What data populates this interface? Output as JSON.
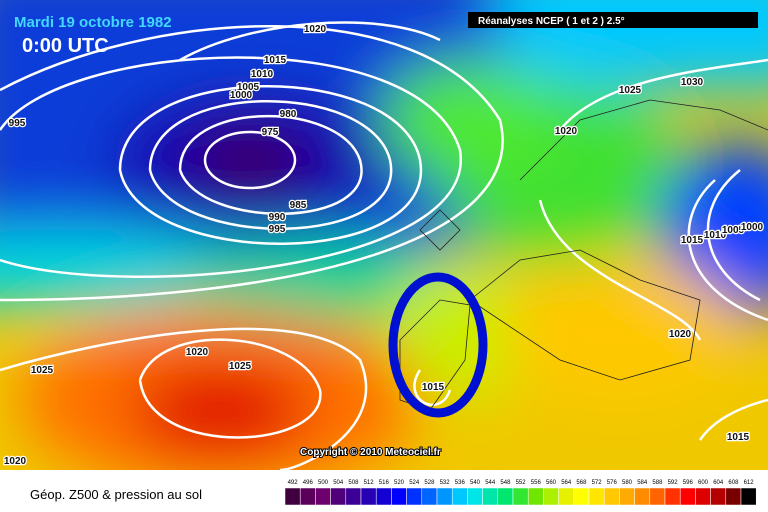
{
  "header": {
    "date": "Mardi 19 octobre 1982",
    "time": "0:00 UTC",
    "source": "Réanalyses NCEP ( 1 et 2 ) 2.5°"
  },
  "isobars": [
    "1020",
    "1015",
    "1010",
    "1005",
    "1000",
    "995",
    "980",
    "975",
    "985",
    "990",
    "995",
    "1025",
    "1030",
    "1020",
    "1015",
    "1010",
    "1005",
    "1000",
    "1020",
    "1020",
    "1025",
    "1025",
    "1015",
    "1015",
    "1020"
  ],
  "copyright": "Copyright © 2010 Meteociel.fr",
  "legend": {
    "title": "Géop. Z500 & pression au sol",
    "levels": [
      492,
      496,
      500,
      504,
      508,
      512,
      516,
      520,
      524,
      528,
      532,
      536,
      540,
      544,
      548,
      552,
      556,
      560,
      564,
      568,
      572,
      576,
      580,
      584,
      588,
      592,
      596,
      600,
      604,
      608,
      612
    ],
    "colors": [
      "#400040",
      "#5a005a",
      "#6e006e",
      "#500078",
      "#3c0096",
      "#2800b4",
      "#1400d2",
      "#0000ff",
      "#0032ff",
      "#0064ff",
      "#0096ff",
      "#00c8ff",
      "#00e6e6",
      "#00e6aa",
      "#00e66e",
      "#32e632",
      "#6ee600",
      "#aaf000",
      "#e6f000",
      "#ffff00",
      "#ffe600",
      "#ffc800",
      "#ffaa00",
      "#ff8c00",
      "#ff6400",
      "#ff3200",
      "#ff0000",
      "#dc0000",
      "#b40000",
      "#780000",
      "#000000"
    ]
  }
}
